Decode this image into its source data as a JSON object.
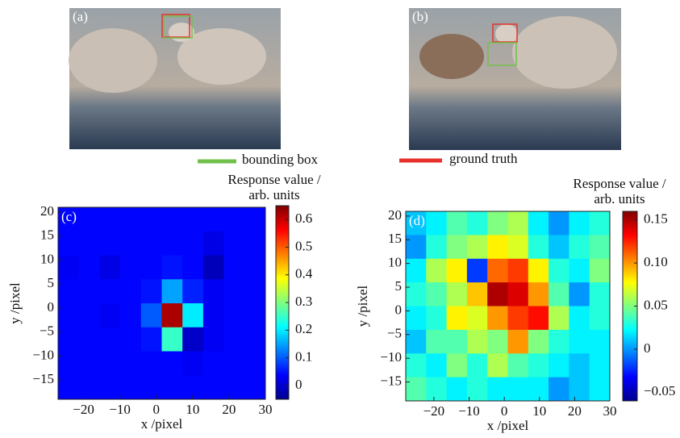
{
  "images": [
    {
      "label": "(a)"
    },
    {
      "label": "(b)"
    }
  ],
  "legend": [
    {
      "name": "bounding box",
      "color": "#72c04c"
    },
    {
      "name": "ground truth",
      "color": "#e8302c"
    }
  ],
  "chart_data": [
    {
      "type": "heatmap",
      "panel": "(c)",
      "xlabel": "x /pixel",
      "ylabel": "y /pixel",
      "colorbar_label": [
        "Response value /",
        "arb. units"
      ],
      "xlim": [
        -27,
        30
      ],
      "ylim": [
        -19,
        21
      ],
      "xticks": [
        {
          "value": -20,
          "label": "−20"
        },
        {
          "value": -10,
          "label": "−10"
        },
        0,
        10,
        20,
        30
      ],
      "yticks": [
        {
          "value": -15,
          "label": "−15"
        },
        {
          "value": -10,
          "label": "−10"
        },
        {
          "value": -5,
          "label": "−5"
        },
        0,
        5,
        10,
        15,
        20
      ],
      "x_edges": [
        -27,
        -21.3,
        -15.6,
        -9.9,
        -4.2,
        1.5,
        7.2,
        12.9,
        18.6,
        24.3,
        30
      ],
      "y_edges": [
        21,
        16,
        11,
        6,
        1,
        -4,
        -9,
        -14,
        -19
      ],
      "z": [
        [
          0.04,
          0.04,
          0.04,
          0.04,
          0.04,
          0.04,
          0.04,
          0.04,
          0.04,
          0.04
        ],
        [
          0.04,
          0.04,
          0.04,
          0.04,
          0.04,
          0.04,
          0.04,
          0.02,
          0.04,
          0.04
        ],
        [
          0.03,
          0.04,
          0.02,
          0.04,
          0.04,
          0.05,
          0.04,
          -0.01,
          0.04,
          0.04
        ],
        [
          0.04,
          0.04,
          0.04,
          0.04,
          0.05,
          0.15,
          0.06,
          0.03,
          0.04,
          0.04
        ],
        [
          0.04,
          0.04,
          0.03,
          0.04,
          0.1,
          0.62,
          0.2,
          0.03,
          0.04,
          0.04
        ],
        [
          0.04,
          0.04,
          0.04,
          0.04,
          0.05,
          0.25,
          0.0,
          0.03,
          0.04,
          0.04
        ],
        [
          0.04,
          0.04,
          0.04,
          0.04,
          0.04,
          0.04,
          0.03,
          0.04,
          0.04,
          0.04
        ],
        [
          0.04,
          0.04,
          0.04,
          0.04,
          0.04,
          0.04,
          0.04,
          0.04,
          0.04,
          0.04
        ]
      ],
      "clim": [
        -0.05,
        0.65
      ],
      "cticks": [
        0,
        0.1,
        0.2,
        0.3,
        0.4,
        0.5,
        0.6
      ]
    },
    {
      "type": "heatmap",
      "panel": "(d)",
      "xlabel": "x /pixel",
      "ylabel": "y /pixel",
      "colorbar_label": [
        "Response value /",
        "arb. units"
      ],
      "xlim": [
        -28,
        30
      ],
      "ylim": [
        -19,
        21
      ],
      "xticks": [
        {
          "value": -20,
          "label": "−20"
        },
        {
          "value": -10,
          "label": "−10"
        },
        0,
        10,
        20,
        30
      ],
      "yticks": [
        {
          "value": -15,
          "label": "−15"
        },
        {
          "value": -10,
          "label": "−10"
        },
        {
          "value": -5,
          "label": "−5"
        },
        0,
        5,
        10,
        15,
        20
      ],
      "x_edges": [
        -28,
        -22.2,
        -16.4,
        -10.6,
        -4.8,
        1,
        6.8,
        12.6,
        18.4,
        24.2,
        30
      ],
      "y_edges": [
        21,
        16,
        11,
        6,
        1,
        -4,
        -9,
        -14,
        -19
      ],
      "z": [
        [
          0.01,
          0.02,
          0.04,
          0.03,
          0.05,
          0.06,
          0.02,
          0.0,
          0.02,
          0.03
        ],
        [
          0.0,
          0.03,
          0.05,
          0.06,
          0.08,
          0.07,
          0.03,
          0.01,
          0.03,
          0.04
        ],
        [
          0.02,
          0.06,
          0.08,
          -0.02,
          0.11,
          0.12,
          0.08,
          0.03,
          0.02,
          0.05
        ],
        [
          0.03,
          0.04,
          0.06,
          0.09,
          0.15,
          0.14,
          0.1,
          0.04,
          0.0,
          0.03
        ],
        [
          0.02,
          0.03,
          0.08,
          0.07,
          0.1,
          0.12,
          0.13,
          0.06,
          0.02,
          0.03
        ],
        [
          0.01,
          0.04,
          0.04,
          0.06,
          0.05,
          0.1,
          0.05,
          0.03,
          0.02,
          0.02
        ],
        [
          0.03,
          0.02,
          0.05,
          0.03,
          0.06,
          0.04,
          0.03,
          0.02,
          0.01,
          0.02
        ],
        [
          0.04,
          0.03,
          0.02,
          0.03,
          0.02,
          0.02,
          0.02,
          0.0,
          0.01,
          0.02
        ]
      ],
      "clim": [
        -0.06,
        0.16
      ],
      "cticks": [
        {
          "value": -0.05,
          "label": "−0.05"
        },
        0,
        0.05,
        {
          "value": 0.1,
          "label": "0.10"
        },
        0.15
      ]
    }
  ]
}
